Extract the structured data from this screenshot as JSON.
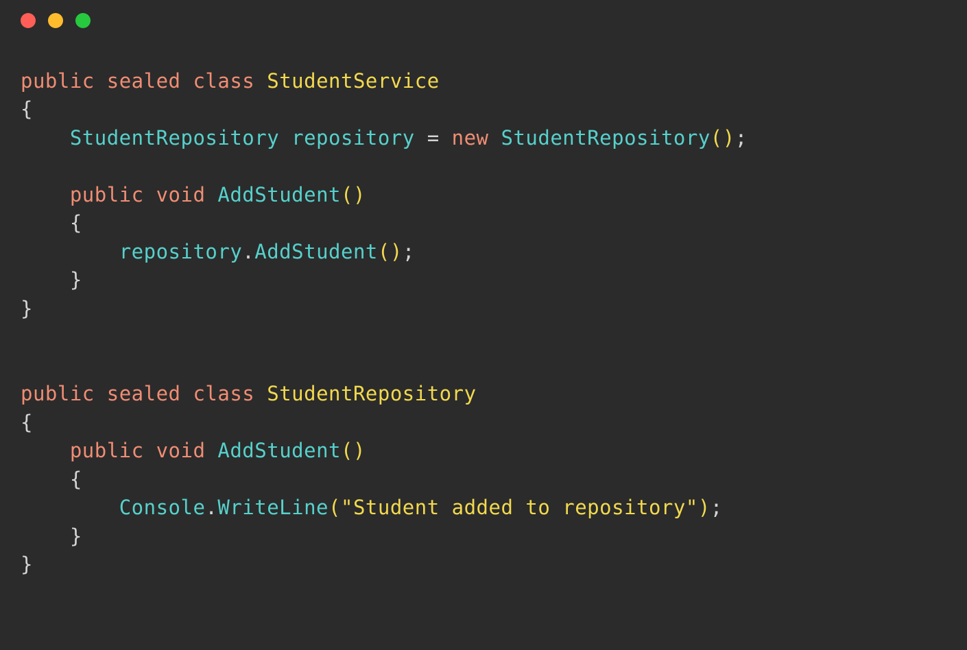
{
  "window": {
    "traffic_lights": {
      "red": "#ff5f56",
      "yellow": "#ffbd2e",
      "green": "#27c93f"
    },
    "background_color": "#2b2b2b",
    "border_radius": 12
  },
  "code": {
    "font_family": "monospace",
    "font_size_pt": 22,
    "colors": {
      "keyword": "#f08d74",
      "class": "#f2d94e",
      "type": "#56d1cc",
      "identifier": "#56d1cc",
      "method": "#56d1cc",
      "punct": "#d4d4d4",
      "paren": "#f2d94e",
      "string": "#f2d94e"
    },
    "tokens": {
      "kw_public": "public",
      "kw_sealed": "sealed",
      "kw_class": "class",
      "kw_void": "void",
      "kw_new": "new",
      "cls_service": "StudentService",
      "cls_repo": "StudentRepository",
      "type_repo": "StudentRepository",
      "ident_repo": "repository",
      "method_add": "AddStudent",
      "ident_console": "Console",
      "method_writeline": "WriteLine",
      "str_msg": "\"Student added to repository\"",
      "brace_open": "{",
      "brace_close": "}",
      "paren_open": "(",
      "paren_close": ")",
      "assign": " = ",
      "semi": ";",
      "dot": ".",
      "sp": " "
    }
  }
}
